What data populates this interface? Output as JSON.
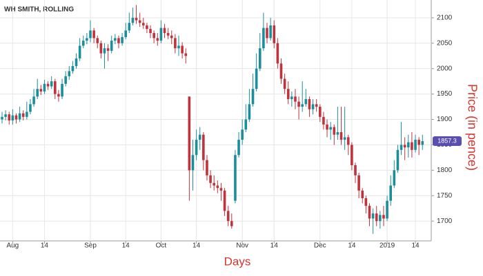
{
  "chart_data": {
    "type": "candlestick",
    "title": "WH SMITH, ROLLING",
    "xlabel": "Days",
    "ylabel": "Price (in pence)",
    "categories": [
      null,
      null,
      null,
      "Aug",
      null,
      null,
      null,
      null,
      null,
      null,
      null,
      null,
      "14",
      null,
      null,
      null,
      null,
      null,
      null,
      null,
      null,
      null,
      null,
      null,
      null,
      "Sep",
      null,
      null,
      null,
      null,
      null,
      null,
      null,
      null,
      null,
      "14",
      null,
      null,
      null,
      null,
      null,
      null,
      null,
      null,
      null,
      "Oct",
      null,
      null,
      null,
      null,
      null,
      null,
      null,
      null,
      null,
      "14",
      null,
      null,
      null,
      null,
      null,
      null,
      null,
      null,
      null,
      null,
      null,
      null,
      "Nov",
      null,
      null,
      null,
      null,
      null,
      null,
      null,
      null,
      "14",
      null,
      null,
      null,
      null,
      null,
      null,
      null,
      null,
      null,
      null,
      null,
      null,
      "Dec",
      null,
      null,
      null,
      null,
      null,
      null,
      null,
      null,
      "14",
      null,
      null,
      null,
      null,
      null,
      null,
      null,
      null,
      null,
      "2019",
      null,
      null,
      null,
      null,
      null,
      null,
      null,
      "14",
      null,
      null
    ],
    "open": [
      1900,
      1905,
      1910,
      1898,
      1908,
      1900,
      1912,
      1905,
      1915,
      1930,
      1945,
      1960,
      1955,
      1970,
      1965,
      1975,
      1950,
      1945,
      1970,
      1985,
      1995,
      2005,
      2020,
      2045,
      2055,
      2060,
      2075,
      2060,
      2050,
      2030,
      2040,
      2035,
      2055,
      2060,
      2050,
      2062,
      2075,
      2090,
      2100,
      2095,
      2090,
      2085,
      2078,
      2070,
      2060,
      2055,
      2080,
      2070,
      2065,
      2060,
      2040,
      2045,
      2030,
      1945,
      1800,
      1830,
      1860,
      1870,
      1820,
      1790,
      1775,
      1770,
      1765,
      1760,
      1720,
      1700,
      1740,
      1830,
      1860,
      1880,
      1900,
      1930,
      1960,
      2000,
      2040,
      2080,
      2060,
      2085,
      2050,
      2010,
      1980,
      1960,
      1940,
      1945,
      1935,
      1925,
      1930,
      1940,
      1920,
      1930,
      1925,
      1905,
      1890,
      1880,
      1885,
      1870,
      1875,
      1860,
      1865,
      1850,
      1810,
      1790,
      1760,
      1745,
      1730,
      1705,
      1715,
      1700,
      1712,
      1705,
      1740,
      1770,
      1800,
      1840,
      1850,
      1845,
      1855,
      1840,
      1860,
      1850
    ],
    "high": [
      1915,
      1918,
      1915,
      1920,
      1912,
      1925,
      1918,
      1935,
      1940,
      1960,
      1980,
      1968,
      1978,
      1975,
      1985,
      1980,
      1958,
      1980,
      1995,
      2005,
      2015,
      2030,
      2060,
      2065,
      2070,
      2095,
      2080,
      2065,
      2055,
      2050,
      2048,
      2065,
      2068,
      2065,
      2070,
      2090,
      2110,
      2120,
      2125,
      2110,
      2100,
      2090,
      2085,
      2075,
      2070,
      2095,
      2088,
      2080,
      2075,
      2068,
      2065,
      2052,
      2040,
      1945,
      1860,
      1880,
      1885,
      1875,
      1830,
      1800,
      1790,
      1780,
      1775,
      1765,
      1730,
      1715,
      1840,
      1875,
      1900,
      1930,
      1960,
      1990,
      2030,
      2070,
      2110,
      2090,
      2100,
      2095,
      2060,
      2020,
      1990,
      1975,
      1955,
      1960,
      1945,
      1975,
      1960,
      1945,
      1940,
      1940,
      1930,
      1915,
      1900,
      1895,
      1890,
      1925,
      1925,
      1925,
      1870,
      1855,
      1815,
      1795,
      1765,
      1750,
      1735,
      1725,
      1730,
      1720,
      1730,
      1750,
      1790,
      1820,
      1850,
      1895,
      1865,
      1870,
      1875,
      1870,
      1865,
      1870
    ],
    "low": [
      1892,
      1898,
      1890,
      1890,
      1892,
      1895,
      1898,
      1900,
      1910,
      1925,
      1940,
      1948,
      1950,
      1958,
      1960,
      1940,
      1935,
      1940,
      1965,
      1978,
      1990,
      2000,
      2015,
      2040,
      2048,
      2052,
      2050,
      2040,
      2020,
      2000,
      2015,
      2030,
      2048,
      2040,
      2045,
      2058,
      2070,
      2085,
      2088,
      2082,
      2078,
      2070,
      2060,
      2050,
      2045,
      2050,
      2060,
      2058,
      2048,
      2030,
      2025,
      2020,
      2010,
      1740,
      1760,
      1820,
      1840,
      1800,
      1780,
      1765,
      1760,
      1755,
      1740,
      1710,
      1690,
      1685,
      1735,
      1825,
      1850,
      1875,
      1895,
      1925,
      1955,
      1995,
      2035,
      2050,
      2055,
      2040,
      2000,
      1970,
      1950,
      1930,
      1925,
      1920,
      1900,
      1915,
      1925,
      1905,
      1910,
      1915,
      1895,
      1880,
      1865,
      1860,
      1850,
      1860,
      1850,
      1840,
      1830,
      1800,
      1775,
      1745,
      1735,
      1715,
      1690,
      1675,
      1690,
      1685,
      1690,
      1700,
      1730,
      1765,
      1795,
      1830,
      1820,
      1825,
      1825,
      1835,
      1830,
      1840
    ],
    "close": [
      1905,
      1910,
      1898,
      1908,
      1900,
      1912,
      1905,
      1915,
      1930,
      1945,
      1960,
      1955,
      1970,
      1965,
      1975,
      1950,
      1945,
      1970,
      1985,
      1995,
      2005,
      2020,
      2045,
      2055,
      2060,
      2075,
      2060,
      2050,
      2030,
      2040,
      2035,
      2055,
      2060,
      2050,
      2062,
      2075,
      2090,
      2100,
      2095,
      2090,
      2085,
      2078,
      2070,
      2060,
      2055,
      2080,
      2070,
      2065,
      2060,
      2040,
      2045,
      2030,
      2025,
      1800,
      1830,
      1860,
      1870,
      1820,
      1790,
      1775,
      1770,
      1765,
      1760,
      1720,
      1700,
      1690,
      1830,
      1860,
      1880,
      1900,
      1930,
      1960,
      2000,
      2040,
      2080,
      2060,
      2085,
      2050,
      2010,
      1980,
      1960,
      1940,
      1945,
      1935,
      1925,
      1930,
      1940,
      1920,
      1930,
      1925,
      1905,
      1890,
      1880,
      1885,
      1870,
      1875,
      1860,
      1865,
      1850,
      1810,
      1790,
      1760,
      1745,
      1730,
      1705,
      1715,
      1700,
      1712,
      1705,
      1740,
      1770,
      1800,
      1840,
      1850,
      1845,
      1855,
      1840,
      1860,
      1850,
      1857.3
    ],
    "up_color": "#1b8e9b",
    "down_color": "#c0323c",
    "ylim": [
      1661,
      2135
    ],
    "yticks": [
      1700,
      1750,
      1800,
      1850,
      1900,
      1950,
      2000,
      2050,
      2100
    ],
    "grid": true
  }
}
